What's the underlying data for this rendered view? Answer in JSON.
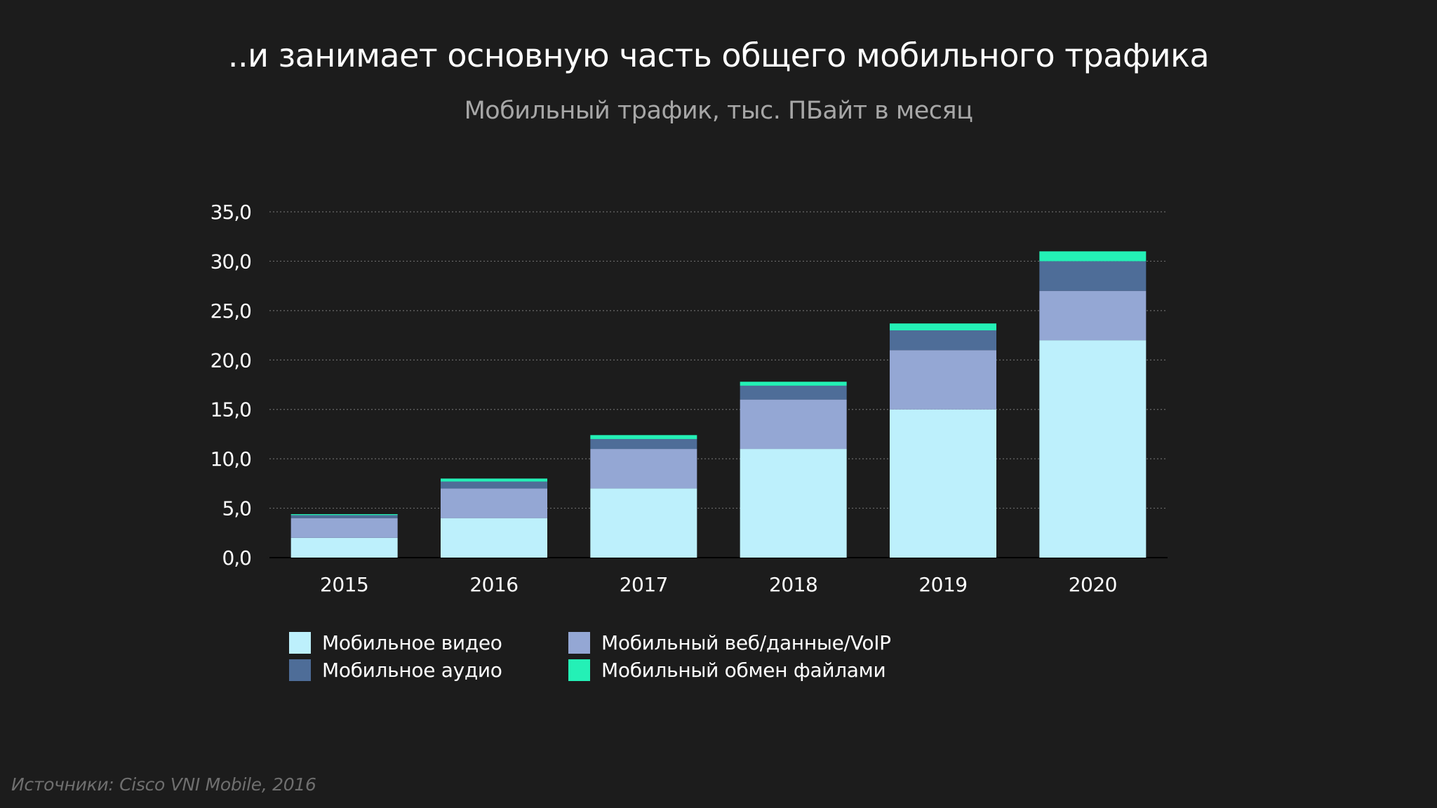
{
  "title": "..и занимает основную часть общего мобильного трафика",
  "subtitle": "Мобильный трафик, тыс. ПБайт в месяц",
  "source": "Источники: Cisco VNI Mobile, 2016",
  "colors": {
    "background": "#1c1c1c",
    "video": "#bdf0fc",
    "web": "#94a7d4",
    "audio": "#4e6d98",
    "files": "#24f0b6",
    "grid": "#6a6a6a",
    "axis_text": "#ffffff"
  },
  "chart_data": {
    "type": "bar",
    "stacked": true,
    "categories": [
      "2015",
      "2016",
      "2017",
      "2018",
      "2019",
      "2020"
    ],
    "series": [
      {
        "name": "Мобильное видео",
        "color": "#bdf0fc",
        "values": [
          2.0,
          4.0,
          7.0,
          11.0,
          15.0,
          22.0
        ]
      },
      {
        "name": "Мобильный веб/данные/VoIP",
        "color": "#94a7d4",
        "values": [
          2.0,
          3.0,
          4.0,
          5.0,
          6.0,
          5.0
        ]
      },
      {
        "name": "Мобильное аудио",
        "color": "#4e6d98",
        "values": [
          0.3,
          0.7,
          1.0,
          1.4,
          2.0,
          3.0
        ]
      },
      {
        "name": "Мобильный обмен файлами",
        "color": "#24f0b6",
        "values": [
          0.1,
          0.3,
          0.4,
          0.4,
          0.7,
          1.0
        ]
      }
    ],
    "y_ticks": [
      "0,0",
      "5,0",
      "10,0",
      "15,0",
      "20,0",
      "25,0",
      "30,0",
      "35,0"
    ],
    "ylim": [
      0,
      35
    ],
    "grid": "dotted horizontal",
    "legend_position": "bottom-left"
  }
}
